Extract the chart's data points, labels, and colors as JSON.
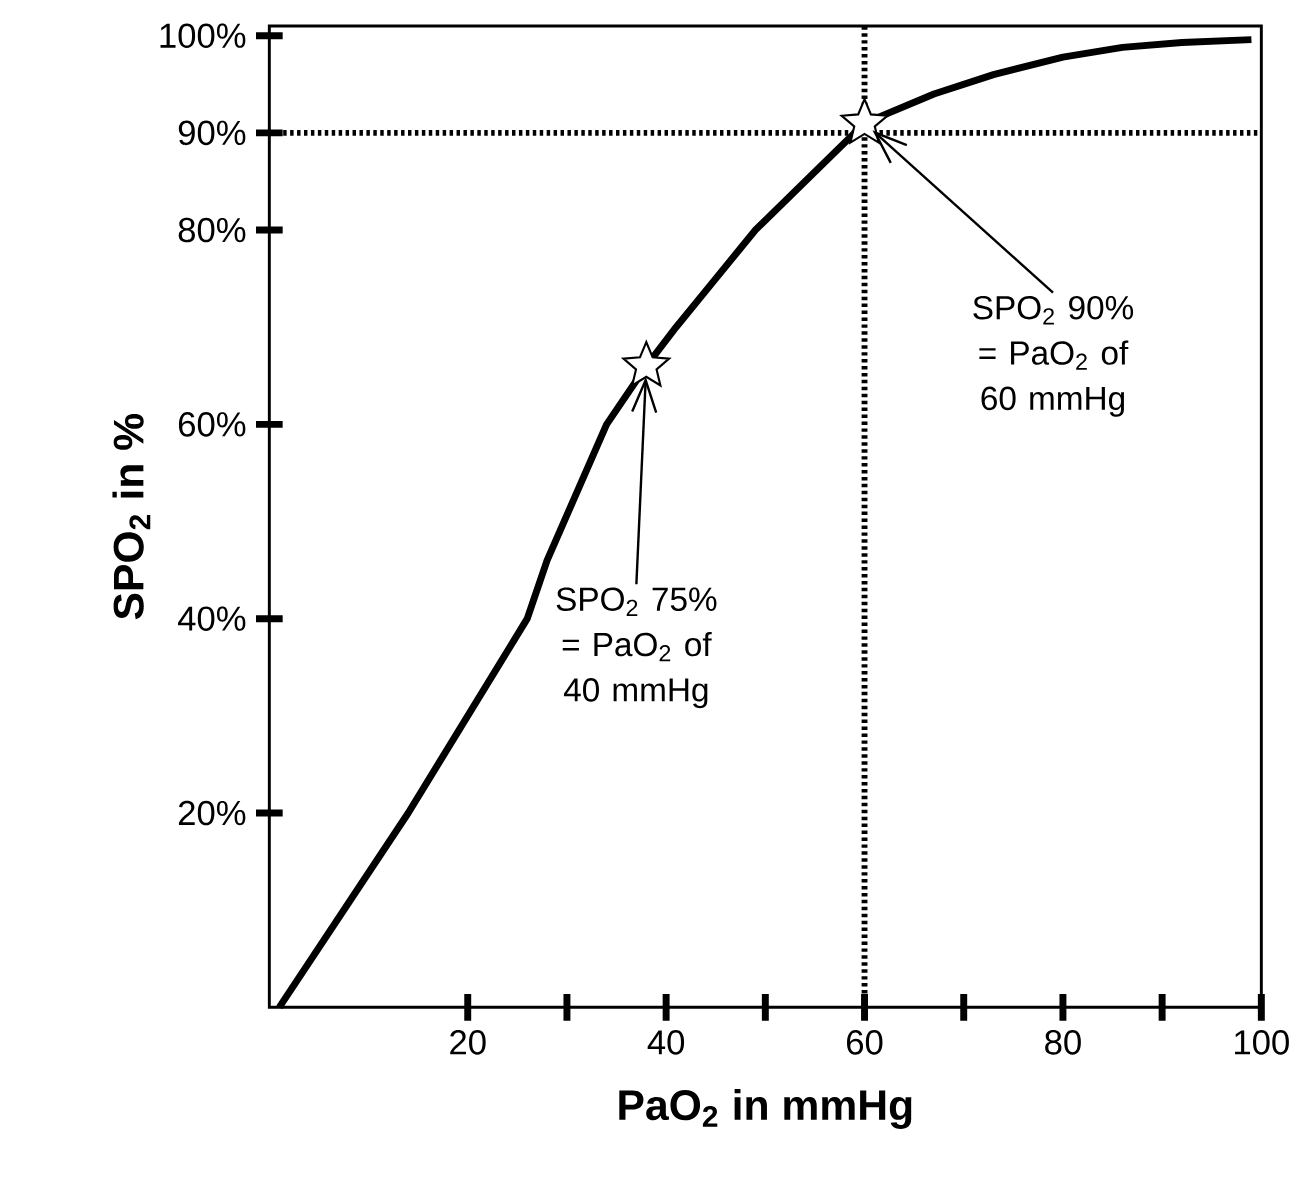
{
  "chart_data": {
    "type": "line",
    "xlabel": "PaO$_{2}$ in mmHg",
    "ylabel": "SPO$_{2}$ in %",
    "xlim": [
      0,
      100
    ],
    "ylim": [
      0,
      101
    ],
    "xticks": [
      20,
      40,
      60,
      80,
      100,
      {
        "value": 30,
        "label": null
      },
      {
        "value": 50,
        "label": null
      },
      {
        "value": 70,
        "label": null
      },
      {
        "value": 90,
        "label": null
      }
    ],
    "yticks": [
      {
        "value": 20,
        "label": "20%"
      },
      {
        "value": 40,
        "label": "40%"
      },
      {
        "value": 60,
        "label": "60%"
      },
      {
        "value": 80,
        "label": "80%"
      },
      {
        "value": 90,
        "label": "90%"
      },
      {
        "value": 100,
        "label": "100%"
      }
    ],
    "series": [
      {
        "type": "line",
        "color": "#000000",
        "marker": "none",
        "x": [
          1,
          14,
          26,
          28,
          31,
          34,
          38,
          41,
          45,
          49,
          54,
          60,
          67,
          73,
          80,
          86,
          92,
          99
        ],
        "values": [
          0,
          20,
          40,
          46,
          53,
          60,
          66,
          70,
          75,
          80,
          85,
          91,
          94,
          96,
          97.8,
          98.8,
          99.3,
          99.6
        ]
      },
      {
        "type": "scatter",
        "color": "#ffffff",
        "marker": "star",
        "x": [
          38,
          60
        ],
        "values": [
          66,
          91
        ]
      }
    ],
    "ref_lines": [
      {
        "axis": "x",
        "value": 60,
        "line_style": "dotted"
      },
      {
        "axis": "y",
        "value": 90,
        "line_style": "dotted"
      }
    ],
    "annotations": [
      {
        "text": "SPO$_{2}$ 90% = PaO$_{2}$ of 60 mmHg",
        "x": 60,
        "y": 91
      },
      {
        "text": "SPO$_{2}$ 75% = PaO$_{2}$ of 40 mmHg",
        "x": 38,
        "y": 66
      }
    ]
  }
}
